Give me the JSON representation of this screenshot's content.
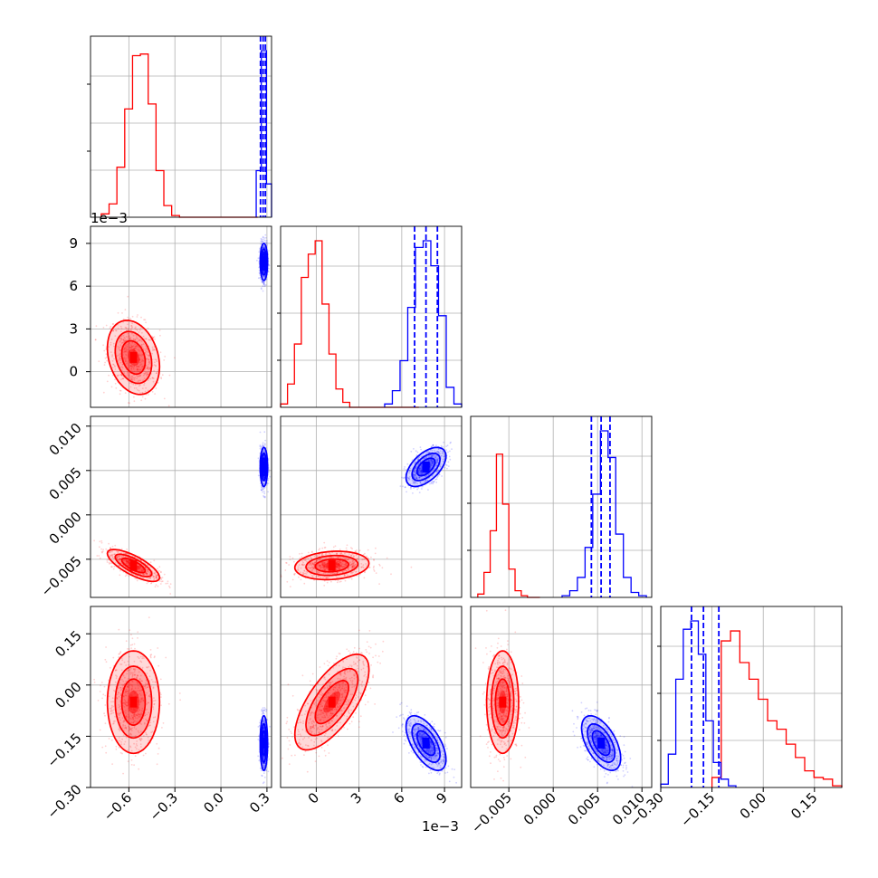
{
  "chart_data": {
    "type": "corner",
    "colors": {
      "red": "#ff0000",
      "blue": "#0000ff",
      "grid": "#b0b0b0",
      "axes": "#000000"
    },
    "grid": true,
    "axis_ranges": {
      "p0": [
        -0.85,
        0.33
      ],
      "p1": [
        -0.0025,
        0.0102
      ],
      "p2": [
        -0.0093,
        0.0111
      ],
      "p3": [
        -0.3,
        0.23
      ]
    },
    "tick_labels": {
      "p0_x": [
        "−0.6",
        "−0.3",
        "0.0",
        "0.3"
      ],
      "p1_y": [
        "0",
        "3",
        "6",
        "9"
      ],
      "p1_x": [
        "0",
        "3",
        "6",
        "9"
      ],
      "p2_y": [
        "−0.005",
        "0.000",
        "0.005",
        "0.010"
      ],
      "p2_x": [
        "−0.005",
        "0.000",
        "0.005",
        "0.010"
      ],
      "p3_y": [
        "−0.30",
        "−0.15",
        "0.00",
        "0.15"
      ],
      "p3_x": [
        "−0.30",
        "−0.15",
        "0.00",
        "0.15"
      ]
    },
    "tick_values": {
      "p0": [
        -0.6,
        -0.3,
        0.0,
        0.3
      ],
      "p1": [
        0,
        0.003,
        0.006,
        0.009
      ],
      "p2": [
        -0.005,
        0.0,
        0.005,
        0.01
      ],
      "p3": [
        -0.3,
        -0.15,
        0.0,
        0.15
      ]
    },
    "offset_labels": {
      "p1_y": "1e−3",
      "p1_x": "1e−3"
    },
    "histograms": [
      {
        "param": "p0",
        "red": {
          "edges_range": [
            -0.78,
            0.24
          ],
          "counts": [
            2,
            8,
            30,
            65,
            97,
            98,
            68,
            28,
            7,
            1,
            0,
            0,
            0,
            0,
            0,
            0,
            0,
            0,
            0,
            0
          ]
        },
        "blue": {
          "edges_range": [
            0.23,
            0.33
          ],
          "counts": [
            28,
            100,
            20
          ]
        },
        "blue_quantiles": [
          0.258,
          0.275,
          0.29
        ]
      },
      {
        "param": "p1",
        "red": {
          "edges_range": [
            -0.0025,
            0.0072
          ],
          "counts": [
            2,
            14,
            38,
            78,
            92,
            100,
            62,
            32,
            11,
            3,
            0,
            0,
            0,
            0,
            0,
            0,
            0,
            0,
            0,
            0
          ]
        },
        "blue": {
          "edges_range": [
            0.0048,
            0.0102
          ],
          "counts": [
            2,
            10,
            28,
            60,
            96,
            100,
            85,
            55,
            12,
            2
          ]
        },
        "blue_quantiles": [
          0.0069,
          0.0077,
          0.0085
        ]
      },
      {
        "param": "p2",
        "red": {
          "edges_range": [
            -0.0085,
            -0.0015
          ],
          "counts": [
            2,
            15,
            40,
            86,
            56,
            17,
            4,
            1,
            0,
            0
          ]
        },
        "blue": {
          "edges_range": [
            0.001,
            0.0105
          ],
          "counts": [
            1,
            4,
            12,
            30,
            62,
            100,
            84,
            38,
            12,
            3,
            1
          ]
        },
        "blue_quantiles": [
          0.0043,
          0.0054,
          0.0064
        ]
      },
      {
        "param": "p3",
        "red": {
          "edges_range": [
            -0.15,
            0.23
          ],
          "counts": [
            6,
            88,
            94,
            75,
            65,
            53,
            40,
            35,
            26,
            18,
            10,
            6,
            5,
            1
          ]
        },
        "blue": {
          "edges_range": [
            -0.3,
            -0.08
          ],
          "counts": [
            2,
            20,
            65,
            95,
            100,
            80,
            40,
            15,
            5,
            1
          ]
        },
        "blue_quantiles": [
          -0.21,
          -0.175,
          -0.13
        ]
      }
    ],
    "scatter_panels": [
      {
        "x": "p0",
        "y": "p1",
        "red": {
          "mean": [
            -0.57,
            0.001
          ],
          "sd": [
            0.085,
            0.0013
          ],
          "rho": -0.25
        },
        "blue": {
          "mean": [
            0.28,
            0.0077
          ],
          "sd": [
            0.012,
            0.00065
          ],
          "rho": 0.0
        }
      },
      {
        "x": "p0",
        "y": "p2",
        "red": {
          "mean": [
            -0.57,
            -0.0057
          ],
          "sd": [
            0.085,
            0.0009
          ],
          "rho": -0.75
        },
        "blue": {
          "mean": [
            0.28,
            0.0054
          ],
          "sd": [
            0.012,
            0.0011
          ],
          "rho": 0.0
        }
      },
      {
        "x": "p1",
        "y": "p2",
        "red": {
          "mean": [
            0.0011,
            -0.0057
          ],
          "sd": [
            0.0013,
            0.0008
          ],
          "rho": 0.15
        },
        "blue": {
          "mean": [
            0.0077,
            0.0054
          ],
          "sd": [
            0.0007,
            0.0011
          ],
          "rho": 0.55
        }
      },
      {
        "x": "p0",
        "y": "p3",
        "red": {
          "mean": [
            -0.57,
            -0.05
          ],
          "sd": [
            0.085,
            0.075
          ],
          "rho": 0.0
        },
        "blue": {
          "mean": [
            0.28,
            -0.17
          ],
          "sd": [
            0.012,
            0.04
          ],
          "rho": 0.0
        }
      },
      {
        "x": "p1",
        "y": "p3",
        "red": {
          "mean": [
            0.0011,
            -0.05
          ],
          "sd": [
            0.0013,
            0.07
          ],
          "rho": 0.68
        },
        "blue": {
          "mean": [
            0.0077,
            -0.17
          ],
          "sd": [
            0.0007,
            0.04
          ],
          "rho": -0.6
        }
      },
      {
        "x": "p2",
        "y": "p3",
        "red": {
          "mean": [
            -0.0057,
            -0.05
          ],
          "sd": [
            0.0009,
            0.075
          ],
          "rho": 0.0
        },
        "blue": {
          "mean": [
            0.0054,
            -0.17
          ],
          "sd": [
            0.0011,
            0.04
          ],
          "rho": -0.55
        }
      }
    ]
  }
}
